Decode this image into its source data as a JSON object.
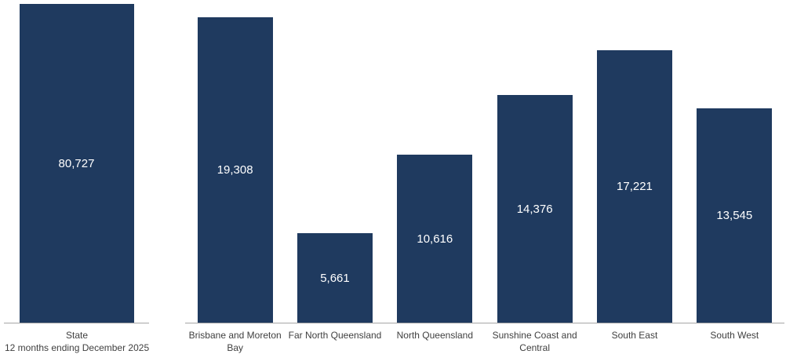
{
  "chart_data": {
    "type": "bar",
    "title": "",
    "legend": "none",
    "grid": false,
    "bar_color": "#1f3a5f",
    "value_label_color": "#ffffff",
    "axis_line_color": "#a6a6a6",
    "category_label_color": "#404040",
    "panels": [
      {
        "id": "state",
        "categories": [
          "State"
        ],
        "category_sublabels": [
          "12 months ending December 2025"
        ],
        "values": [
          80727
        ],
        "value_labels": [
          "80,727"
        ],
        "ylim": [
          0,
          80727
        ]
      },
      {
        "id": "regions",
        "categories": [
          "Brisbane and Moreton Bay",
          "Far North Queensland",
          "North Queensland",
          "Sunshine Coast and Central",
          "South East",
          "South West"
        ],
        "values": [
          19308,
          5661,
          10616,
          14376,
          17221,
          13545
        ],
        "value_labels": [
          "19,308",
          "5,661",
          "10,616",
          "14,376",
          "17,221",
          "13,545"
        ],
        "ylim": [
          0,
          20150
        ]
      }
    ]
  }
}
